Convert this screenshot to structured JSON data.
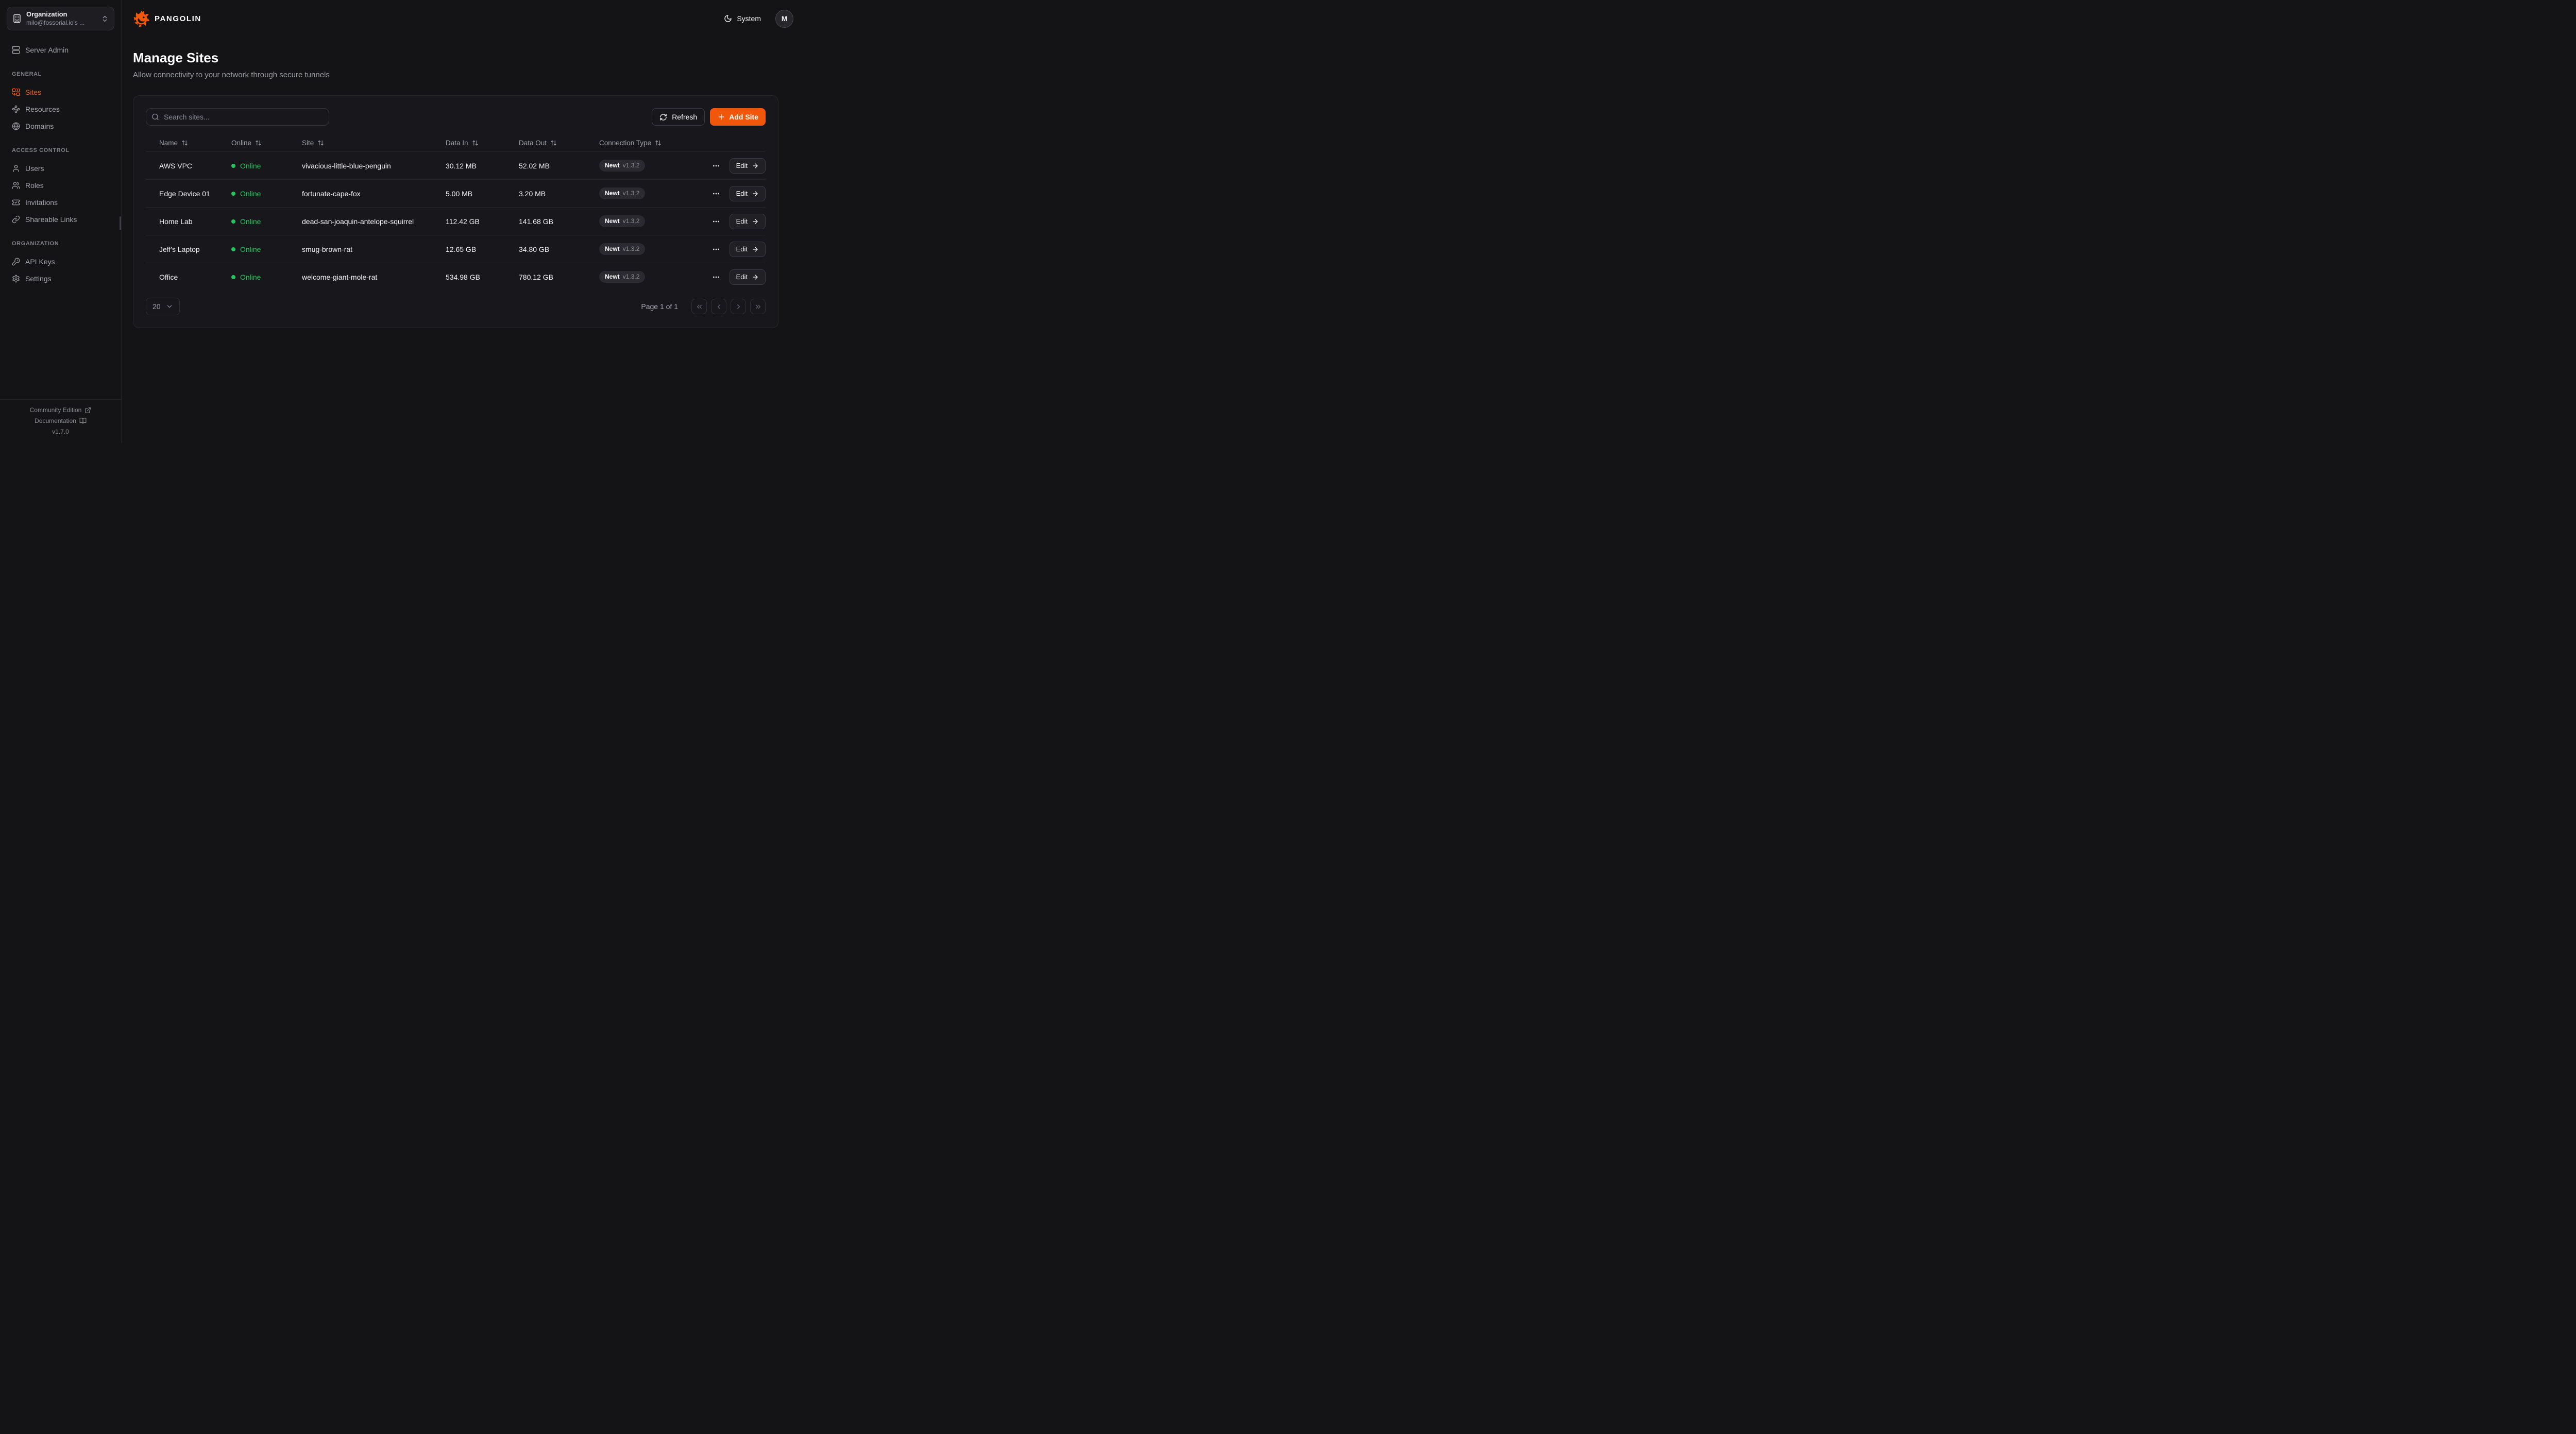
{
  "colors": {
    "accent": "#F0570B",
    "online_green": "#22C55E",
    "background": "#141417",
    "card": "#18181C"
  },
  "org_selector": {
    "label": "Organization",
    "value": "milo@fossorial.io's ..."
  },
  "sidebar": {
    "top_item": {
      "label": "Server Admin",
      "icon": "server"
    },
    "sections": [
      {
        "label": "GENERAL",
        "items": [
          {
            "label": "Sites",
            "icon": "combine",
            "active": true
          },
          {
            "label": "Resources",
            "icon": "waypoints",
            "active": false
          },
          {
            "label": "Domains",
            "icon": "globe",
            "active": false
          }
        ]
      },
      {
        "label": "ACCESS CONTROL",
        "items": [
          {
            "label": "Users",
            "icon": "user",
            "active": false
          },
          {
            "label": "Roles",
            "icon": "users",
            "active": false
          },
          {
            "label": "Invitations",
            "icon": "ticket-check",
            "active": false
          },
          {
            "label": "Shareable Links",
            "icon": "link",
            "active": false
          }
        ]
      },
      {
        "label": "ORGANIZATION",
        "items": [
          {
            "label": "API Keys",
            "icon": "key",
            "active": false
          },
          {
            "label": "Settings",
            "icon": "gear",
            "active": false
          }
        ]
      }
    ],
    "footer": {
      "community": "Community Edition",
      "docs": "Documentation",
      "version": "v1.7.0"
    }
  },
  "header": {
    "brand": "PANGOLIN",
    "theme_label": "System",
    "avatar_initial": "M"
  },
  "page": {
    "title": "Manage Sites",
    "subtitle": "Allow connectivity to your network through secure tunnels"
  },
  "toolbar": {
    "search_placeholder": "Search sites...",
    "refresh_label": "Refresh",
    "add_site_label": "Add Site"
  },
  "table": {
    "columns": [
      "Name",
      "Online",
      "Site",
      "Data In",
      "Data Out",
      "Connection Type"
    ],
    "rows": [
      {
        "name": "AWS VPC",
        "status": "Online",
        "site": "vivacious-little-blue-penguin",
        "data_in": "30.12 MB",
        "data_out": "52.02 MB",
        "connection": "Newt",
        "version": "v1.3.2",
        "edit_label": "Edit"
      },
      {
        "name": "Edge Device 01",
        "status": "Online",
        "site": "fortunate-cape-fox",
        "data_in": "5.00 MB",
        "data_out": "3.20 MB",
        "connection": "Newt",
        "version": "v1.3.2",
        "edit_label": "Edit"
      },
      {
        "name": "Home Lab",
        "status": "Online",
        "site": "dead-san-joaquin-antelope-squirrel",
        "data_in": "112.42 GB",
        "data_out": "141.68 GB",
        "connection": "Newt",
        "version": "v1.3.2",
        "edit_label": "Edit"
      },
      {
        "name": "Jeff's Laptop",
        "status": "Online",
        "site": "smug-brown-rat",
        "data_in": "12.65 GB",
        "data_out": "34.80 GB",
        "connection": "Newt",
        "version": "v1.3.2",
        "edit_label": "Edit"
      },
      {
        "name": "Office",
        "status": "Online",
        "site": "welcome-giant-mole-rat",
        "data_in": "534.98 GB",
        "data_out": "780.12 GB",
        "connection": "Newt",
        "version": "v1.3.2",
        "edit_label": "Edit"
      }
    ]
  },
  "pagination": {
    "page_size": "20",
    "status": "Page 1 of 1"
  }
}
